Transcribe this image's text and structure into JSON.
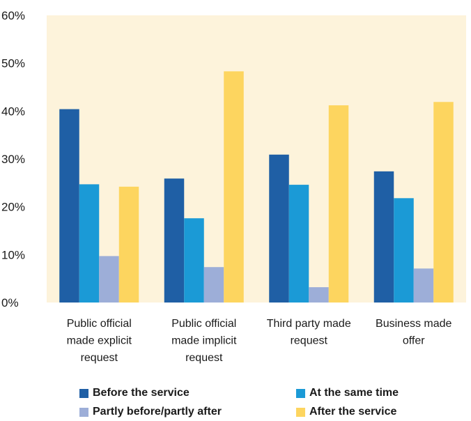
{
  "chart_data": {
    "type": "bar",
    "categories": [
      [
        "Public official",
        "made explicit",
        "request"
      ],
      [
        "Public official",
        "made implicit",
        "request"
      ],
      [
        "Third party made",
        "request"
      ],
      [
        "Business made",
        "offer"
      ]
    ],
    "series": [
      {
        "name": "Before the service",
        "color": "#1f5fa5",
        "values": [
          40.4,
          25.9,
          30.9,
          27.4
        ]
      },
      {
        "name": "At the same time",
        "color": "#1b9ad6",
        "values": [
          24.7,
          17.6,
          24.6,
          21.8
        ]
      },
      {
        "name": "Partly before/partly after",
        "color": "#9daed8",
        "values": [
          9.7,
          7.4,
          3.2,
          7.1
        ]
      },
      {
        "name": "After the service",
        "color": "#fdd55f",
        "values": [
          24.2,
          48.3,
          41.2,
          41.9
        ]
      }
    ],
    "ylim": [
      0,
      60
    ],
    "yticks": [
      "0%",
      "10%",
      "20%",
      "30%",
      "40%",
      "50%",
      "60%"
    ],
    "plot_background": "#fdf3db",
    "legend_position": "bottom"
  }
}
